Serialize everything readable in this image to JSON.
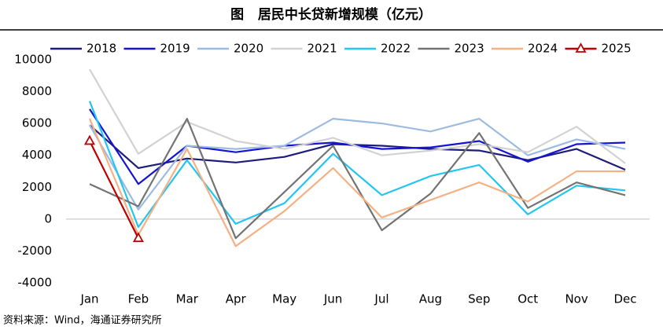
{
  "chart_data": {
    "type": "line",
    "title": "图   居民中长贷新增规模（亿元）",
    "source": "资料来源：Wind，海通证券研究所",
    "categories": [
      "Jan",
      "Feb",
      "Mar",
      "Apr",
      "May",
      "Jun",
      "Jul",
      "Aug",
      "Sep",
      "Oct",
      "Nov",
      "Dec"
    ],
    "ylim": [
      -4000,
      10000
    ],
    "yticks": [
      -4000,
      -2000,
      0,
      2000,
      4000,
      6000,
      8000,
      10000
    ],
    "grid": false,
    "legend": "top",
    "series": [
      {
        "name": "2018",
        "color": "#1c1c7a",
        "values": [
          5900,
          3200,
          3800,
          3550,
          3900,
          4700,
          4600,
          4400,
          4300,
          3700,
          4400,
          3100
        ]
      },
      {
        "name": "2019",
        "color": "#1414d2",
        "values": [
          6900,
          2200,
          4600,
          4200,
          4600,
          4800,
          4400,
          4500,
          4900,
          3600,
          4700,
          4800
        ]
      },
      {
        "name": "2020",
        "color": "#9dbbe0",
        "values": [
          5900,
          600,
          4600,
          4400,
          4600,
          6300,
          6000,
          5500,
          6300,
          4000,
          5000,
          4400
        ]
      },
      {
        "name": "2021",
        "color": "#d2d2d2",
        "values": [
          9400,
          4100,
          6100,
          4900,
          4400,
          5100,
          4000,
          4300,
          4700,
          4200,
          5800,
          3500
        ]
      },
      {
        "name": "2022",
        "color": "#22c6f0",
        "values": [
          7400,
          -500,
          3700,
          -300,
          1000,
          4100,
          1500,
          2700,
          3400,
          300,
          2100,
          1800
        ]
      },
      {
        "name": "2023",
        "color": "#737373",
        "values": [
          2200,
          800,
          6300,
          -1200,
          1700,
          4600,
          -700,
          1600,
          5400,
          700,
          2300,
          1500
        ]
      },
      {
        "name": "2024",
        "color": "#f4b183",
        "values": [
          6300,
          -1000,
          4400,
          -1700,
          500,
          3200,
          100,
          1200,
          2300,
          1100,
          3000,
          3000
        ]
      },
      {
        "name": "2025",
        "color": "#c00000",
        "marker": "triangle",
        "values": [
          4900,
          -1200,
          null,
          null,
          null,
          null,
          null,
          null,
          null,
          null,
          null,
          null
        ]
      }
    ]
  }
}
